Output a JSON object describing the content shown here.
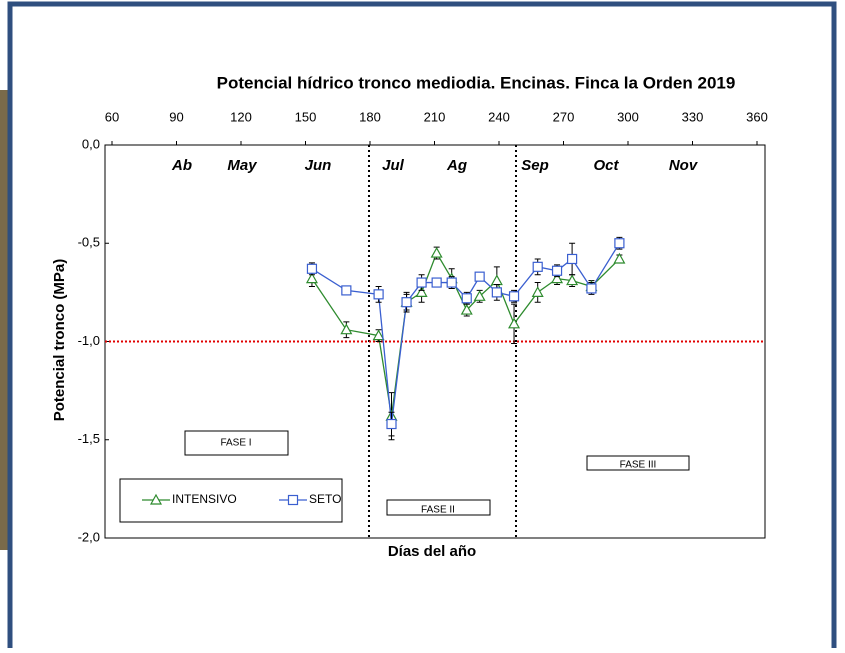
{
  "chart_data": {
    "type": "line",
    "title": "Potencial hídrico tronco mediodia. Encinas. Finca la Orden 2019",
    "x_label": "Días del año",
    "y_label": "Potencial tronco (MPa)",
    "x": [
      153,
      169,
      184,
      190,
      197,
      204,
      211,
      218,
      225,
      231,
      239,
      247,
      258,
      267,
      274,
      283,
      296
    ],
    "series": [
      {
        "name": "INTENSIVO",
        "color": "#2e8b2e",
        "marker": "triangle",
        "values": [
          -0.68,
          -0.94,
          -0.97,
          -1.38,
          -0.8,
          -0.75,
          -0.55,
          -0.68,
          -0.84,
          -0.77,
          -0.69,
          -0.91,
          -0.75,
          -0.68,
          -0.69,
          -0.72,
          -0.58
        ],
        "errors": [
          0.04,
          0.04,
          0.03,
          0.12,
          0.04,
          0.05,
          0.03,
          0.05,
          0.03,
          0.03,
          0.07,
          0.1,
          0.05,
          0.03,
          0.03,
          0.03,
          0.02
        ]
      },
      {
        "name": "SETO",
        "color": "#3a5fd0",
        "marker": "square",
        "values": [
          -0.63,
          -0.74,
          -0.76,
          -1.42,
          -0.8,
          -0.7,
          -0.7,
          -0.7,
          -0.78,
          -0.67,
          -0.75,
          -0.77,
          -0.62,
          -0.64,
          -0.58,
          -0.73,
          -0.5
        ],
        "errors": [
          0.03,
          0.02,
          0.04,
          0.06,
          0.05,
          0.04,
          0.02,
          0.03,
          0.03,
          0.02,
          0.04,
          0.03,
          0.04,
          0.03,
          0.08,
          0.03,
          0.03
        ]
      }
    ],
    "xlim": [
      60,
      360
    ],
    "xticks": [
      60,
      90,
      120,
      150,
      180,
      210,
      240,
      270,
      300,
      330,
      360
    ],
    "ylim": [
      -2,
      0
    ],
    "yticks": [
      {
        "value": -2,
        "label": "-2,0"
      },
      {
        "value": -1.5,
        "label": "-1,5"
      },
      {
        "value": -1,
        "label": "-1,0"
      },
      {
        "value": -0.5,
        "label": "-0,5"
      },
      {
        "value": 0,
        "label": "0,0"
      }
    ],
    "reference_line": {
      "value": -1,
      "color": "#e00000"
    },
    "months": [
      "Ab",
      "May",
      "Jun",
      "Jul",
      "Ag",
      "Sep",
      "Oct",
      "Nov"
    ],
    "phases": [
      "FASE I",
      "FASE II",
      "FASE III"
    ]
  }
}
